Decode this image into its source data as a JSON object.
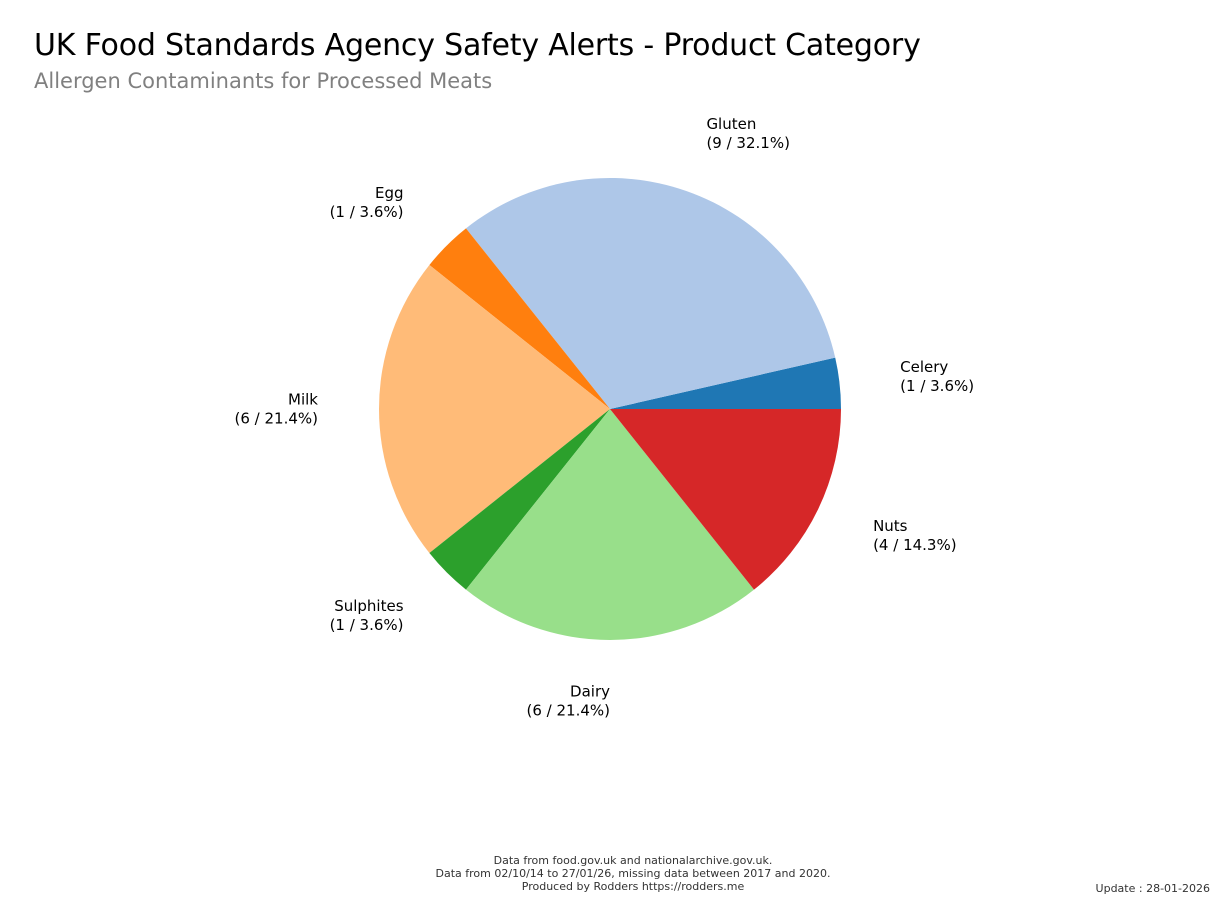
{
  "chart_data": {
    "type": "pie",
    "title": "UK Food Standards Agency Safety Alerts - Product Category",
    "subtitle": "Allergen Contaminants for Processed Meats",
    "slices": [
      {
        "label": "Celery",
        "value": 1,
        "percent": "3.6%",
        "color": "#1f77b4",
        "text": "(1 / 3.6%)"
      },
      {
        "label": "Gluten",
        "value": 9,
        "percent": "32.1%",
        "color": "#aec7e8",
        "text": "(9 / 32.1%)"
      },
      {
        "label": "Egg",
        "value": 1,
        "percent": "3.6%",
        "color": "#ff7f0e",
        "text": "(1 / 3.6%)"
      },
      {
        "label": "Milk",
        "value": 6,
        "percent": "21.4%",
        "color": "#ffbb78",
        "text": "(6 / 21.4%)"
      },
      {
        "label": "Sulphites",
        "value": 1,
        "percent": "3.6%",
        "color": "#2ca02c",
        "text": "(1 / 3.6%)"
      },
      {
        "label": "Dairy",
        "value": 6,
        "percent": "21.4%",
        "color": "#98df8a",
        "text": "(6 / 21.4%)"
      },
      {
        "label": "Nuts",
        "value": 4,
        "percent": "14.3%",
        "color": "#d62728",
        "text": "(4 / 14.3%)"
      }
    ]
  },
  "footer": {
    "line1": "Data from food.gov.uk and nationalarchive.gov.uk.",
    "line2": "Data from 02/10/14 to 27/01/26, missing data between 2017 and 2020.",
    "line3": "Produced by Rodders https://rodders.me",
    "update": "Update : 28-01-2026"
  }
}
